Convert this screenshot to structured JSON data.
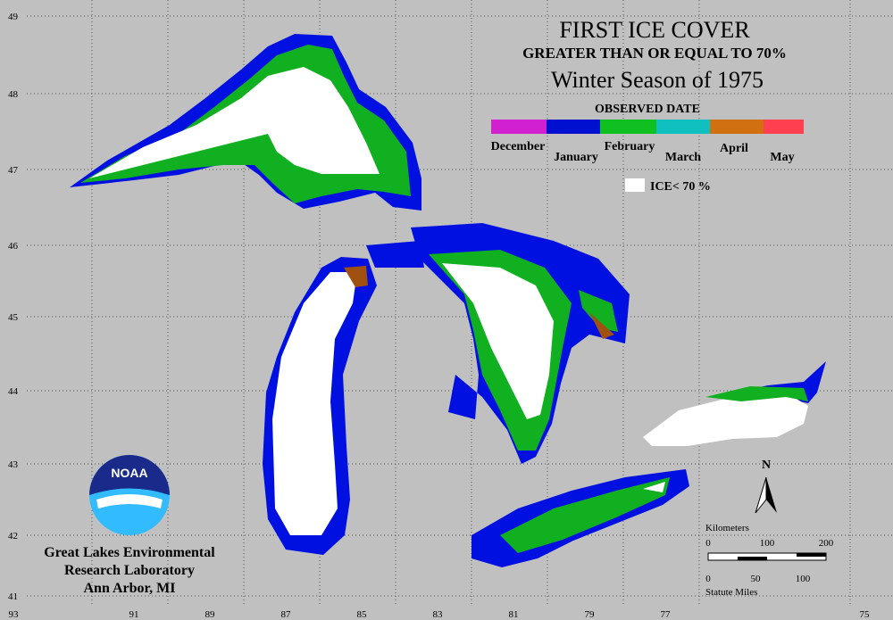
{
  "header": {
    "title": "FIRST ICE COVER",
    "subtitle": "GREATER THAN OR EQUAL TO 70%",
    "season": "Winter Season of 1975"
  },
  "legend": {
    "title": "OBSERVED DATE",
    "months": [
      "December",
      "January",
      "February",
      "March",
      "April",
      "May"
    ],
    "low_ice": "ICE< 70 %"
  },
  "latitudes": [
    49,
    48,
    47,
    46,
    45,
    44,
    43,
    42,
    41
  ],
  "longitudes": [
    93,
    91,
    89,
    87,
    85,
    83,
    81,
    79,
    77,
    75
  ],
  "north": "N",
  "scale": {
    "km_title": "Kilometers",
    "km_ticks": [
      "0",
      "100",
      "200"
    ],
    "mi_ticks": [
      "0",
      "50",
      "100"
    ],
    "mi_title": "Statute Miles"
  },
  "logo": {
    "text": "NOAA",
    "lines": [
      "Great Lakes Environmental",
      "Research Laboratory",
      "Ann Arbor, MI"
    ]
  }
}
